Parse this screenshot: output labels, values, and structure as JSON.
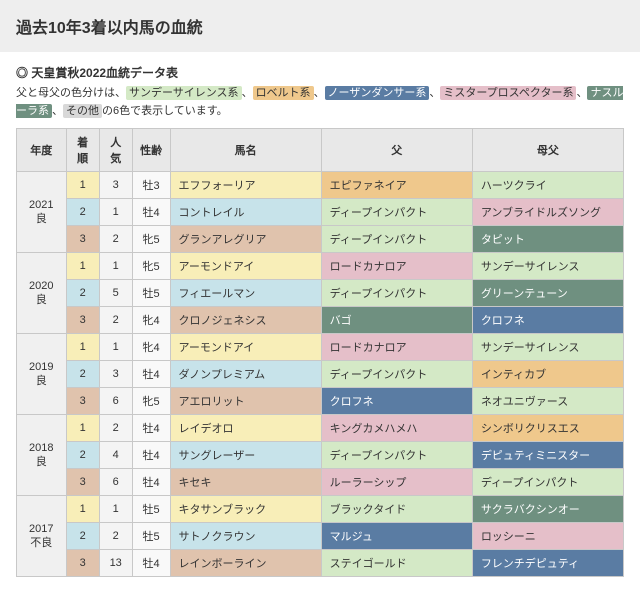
{
  "title": "過去10年3着以内馬の血統",
  "subtitle_icon": "◎",
  "subtitle": "天皇賞秋2022血統データ表",
  "legend_prefix": "父と母父の色分けは、",
  "legend_categories": [
    {
      "label": "サンデーサイレンス系",
      "bg": "#d4e9c6",
      "fg": "#333333"
    },
    {
      "label": "ロベルト系",
      "bg": "#efc88c",
      "fg": "#333333"
    },
    {
      "label": "ノーザンダンサー系",
      "bg": "#5a7ca3",
      "fg": "#ffffff"
    },
    {
      "label": "ミスタープロスペクター系",
      "bg": "#e5bfc9",
      "fg": "#333333"
    },
    {
      "label": "ナスルーラ系",
      "bg": "#6f9080",
      "fg": "#ffffff"
    },
    {
      "label": "その他",
      "bg": "#d8d8d8",
      "fg": "#333333"
    }
  ],
  "legend_middle": "、",
  "legend_suffix": "の6色で表示しています。",
  "headers": [
    "年度",
    "着順",
    "人気",
    "性齢",
    "馬名",
    "父",
    "母父"
  ],
  "colors": {
    "ss": "#d4e9c6",
    "rob": "#efc88c",
    "nd": "#5a7ca3",
    "mp": "#e5bfc9",
    "nas": "#6f9080",
    "oth": "#d8d8d8"
  },
  "colwidths": [
    "42",
    "28",
    "28",
    "32",
    "128",
    "128",
    "128"
  ],
  "groups": [
    {
      "year_lines": [
        "2021",
        "良"
      ],
      "rows": [
        {
          "rank": "1",
          "pop": "3",
          "sexage": "牡3",
          "horse": "エフフォーリア",
          "sire": {
            "t": "エピファネイア",
            "c": "rob"
          },
          "dam": {
            "t": "ハーツクライ",
            "c": "ss"
          }
        },
        {
          "rank": "2",
          "pop": "1",
          "sexage": "牡4",
          "horse": "コントレイル",
          "sire": {
            "t": "ディープインパクト",
            "c": "ss"
          },
          "dam": {
            "t": "アンブライドルズソング",
            "c": "mp"
          }
        },
        {
          "rank": "3",
          "pop": "2",
          "sexage": "牝5",
          "horse": "グランアレグリア",
          "sire": {
            "t": "ディープインパクト",
            "c": "ss"
          },
          "dam": {
            "t": "タピット",
            "c": "nas"
          }
        }
      ]
    },
    {
      "year_lines": [
        "2020",
        "良"
      ],
      "rows": [
        {
          "rank": "1",
          "pop": "1",
          "sexage": "牝5",
          "horse": "アーモンドアイ",
          "sire": {
            "t": "ロードカナロア",
            "c": "mp"
          },
          "dam": {
            "t": "サンデーサイレンス",
            "c": "ss"
          }
        },
        {
          "rank": "2",
          "pop": "5",
          "sexage": "牡5",
          "horse": "フィエールマン",
          "sire": {
            "t": "ディープインパクト",
            "c": "ss"
          },
          "dam": {
            "t": "グリーンテューン",
            "c": "nas"
          }
        },
        {
          "rank": "3",
          "pop": "2",
          "sexage": "牝4",
          "horse": "クロノジェネシス",
          "sire": {
            "t": "バゴ",
            "c": "nas"
          },
          "dam": {
            "t": "クロフネ",
            "c": "nd"
          }
        }
      ]
    },
    {
      "year_lines": [
        "2019",
        "良"
      ],
      "rows": [
        {
          "rank": "1",
          "pop": "1",
          "sexage": "牝4",
          "horse": "アーモンドアイ",
          "sire": {
            "t": "ロードカナロア",
            "c": "mp"
          },
          "dam": {
            "t": "サンデーサイレンス",
            "c": "ss"
          }
        },
        {
          "rank": "2",
          "pop": "3",
          "sexage": "牡4",
          "horse": "ダノンプレミアム",
          "sire": {
            "t": "ディープインパクト",
            "c": "ss"
          },
          "dam": {
            "t": "インティカブ",
            "c": "rob"
          }
        },
        {
          "rank": "3",
          "pop": "6",
          "sexage": "牝5",
          "horse": "アエロリット",
          "sire": {
            "t": "クロフネ",
            "c": "nd"
          },
          "dam": {
            "t": "ネオユニヴァース",
            "c": "ss"
          }
        }
      ]
    },
    {
      "year_lines": [
        "2018",
        "良"
      ],
      "rows": [
        {
          "rank": "1",
          "pop": "2",
          "sexage": "牡4",
          "horse": "レイデオロ",
          "sire": {
            "t": "キングカメハメハ",
            "c": "mp"
          },
          "dam": {
            "t": "シンボリクリスエス",
            "c": "rob"
          }
        },
        {
          "rank": "2",
          "pop": "4",
          "sexage": "牡4",
          "horse": "サングレーザー",
          "sire": {
            "t": "ディープインパクト",
            "c": "ss"
          },
          "dam": {
            "t": "デピュティミニスター",
            "c": "nd"
          }
        },
        {
          "rank": "3",
          "pop": "6",
          "sexage": "牡4",
          "horse": "キセキ",
          "sire": {
            "t": "ルーラーシップ",
            "c": "mp"
          },
          "dam": {
            "t": "ディープインパクト",
            "c": "ss"
          }
        }
      ]
    },
    {
      "year_lines": [
        "2017",
        "不良"
      ],
      "rows": [
        {
          "rank": "1",
          "pop": "1",
          "sexage": "牡5",
          "horse": "キタサンブラック",
          "sire": {
            "t": "ブラックタイド",
            "c": "ss"
          },
          "dam": {
            "t": "サクラバクシンオー",
            "c": "nas"
          }
        },
        {
          "rank": "2",
          "pop": "2",
          "sexage": "牡5",
          "horse": "サトノクラウン",
          "sire": {
            "t": "マルジュ",
            "c": "nd"
          },
          "dam": {
            "t": "ロッシーニ",
            "c": "mp"
          }
        },
        {
          "rank": "3",
          "pop": "13",
          "sexage": "牡4",
          "horse": "レインボーライン",
          "sire": {
            "t": "ステイゴールド",
            "c": "ss"
          },
          "dam": {
            "t": "フレンチデピュティ",
            "c": "nd"
          }
        }
      ]
    }
  ]
}
